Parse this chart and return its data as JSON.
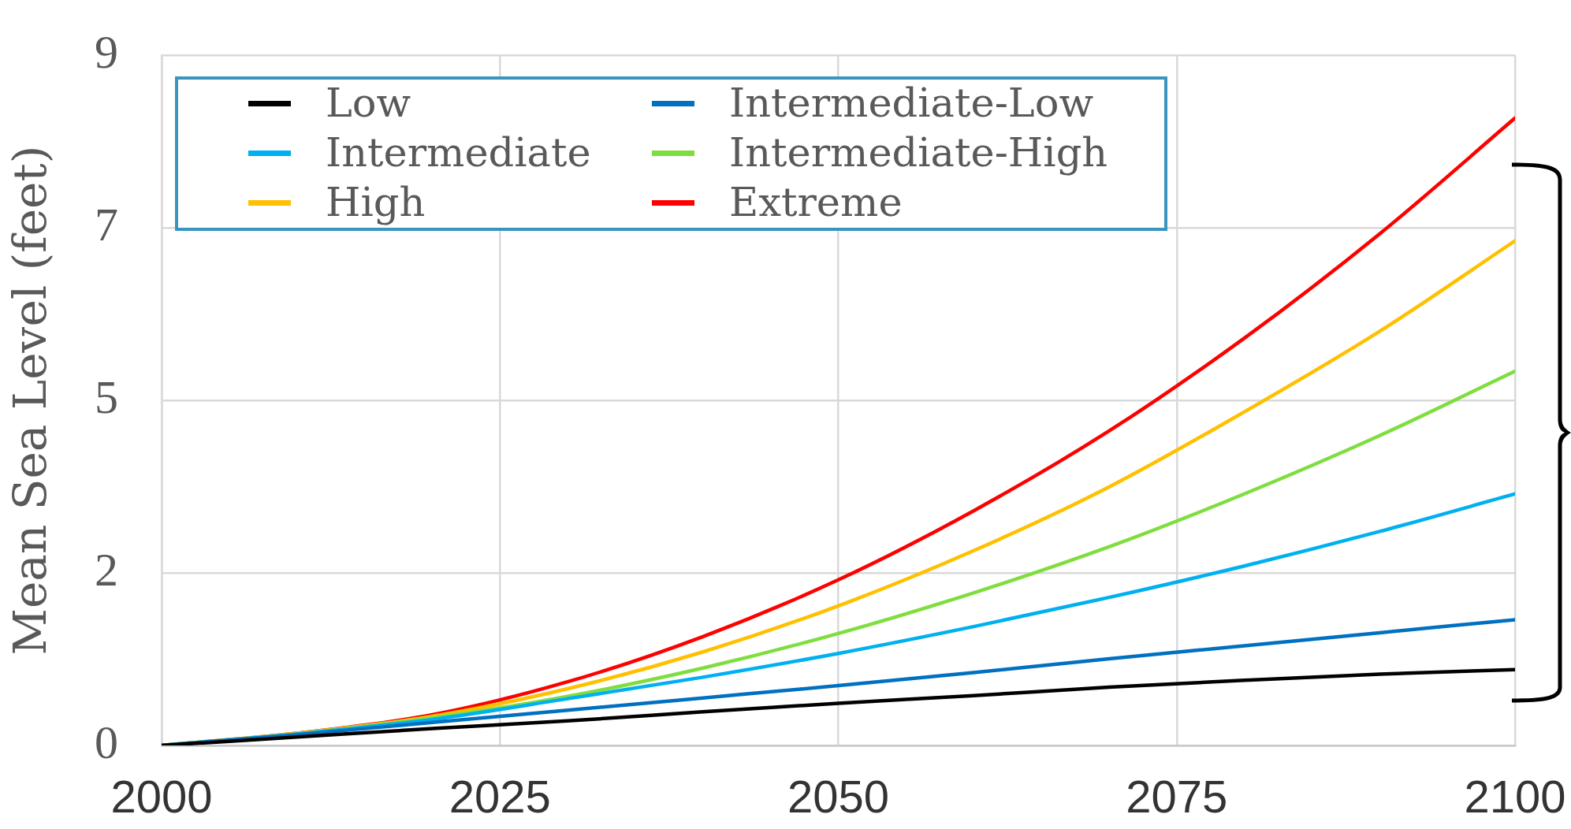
{
  "chart_data": {
    "type": "line",
    "x": [
      2000,
      2010,
      2020,
      2030,
      2040,
      2050,
      2060,
      2070,
      2080,
      2090,
      2100
    ],
    "series": [
      {
        "name": "Low",
        "color": "#000000",
        "values": [
          0,
          0.11,
          0.22,
          0.32,
          0.44,
          0.55,
          0.65,
          0.76,
          0.85,
          0.93,
          0.99
        ]
      },
      {
        "name": "Intermediate-Low",
        "color": "#0070c0",
        "values": [
          0,
          0.14,
          0.3,
          0.46,
          0.62,
          0.78,
          0.95,
          1.13,
          1.3,
          1.47,
          1.64
        ]
      },
      {
        "name": "Intermediate",
        "color": "#00b0f0",
        "values": [
          0,
          0.15,
          0.34,
          0.61,
          0.89,
          1.2,
          1.55,
          1.93,
          2.34,
          2.79,
          3.28
        ]
      },
      {
        "name": "Intermediate-High",
        "color": "#7fde3f",
        "values": [
          0,
          0.15,
          0.36,
          0.64,
          1.01,
          1.46,
          1.99,
          2.59,
          3.28,
          4.04,
          4.88
        ]
      },
      {
        "name": "High",
        "color": "#ffc000",
        "values": [
          0,
          0.16,
          0.38,
          0.74,
          1.22,
          1.82,
          2.54,
          3.37,
          4.35,
          5.4,
          6.58
        ]
      },
      {
        "name": "Extreme",
        "color": "#ff0000",
        "values": [
          0,
          0.16,
          0.4,
          0.83,
          1.42,
          2.16,
          3.06,
          4.1,
          5.31,
          6.67,
          8.18
        ]
      }
    ],
    "ylabel": "Mean Sea Level (feet)",
    "xlim": [
      2000,
      2100
    ],
    "xticks": [
      2000,
      2025,
      2050,
      2075,
      2100
    ],
    "ylim": [
      0,
      9
    ],
    "yticks": [
      0,
      {
        "value": 2.25,
        "label": "2"
      },
      {
        "value": 4.5,
        "label": "5"
      },
      {
        "value": 6.75,
        "label": "7"
      },
      9
    ],
    "grid": true,
    "legend": "top left"
  }
}
